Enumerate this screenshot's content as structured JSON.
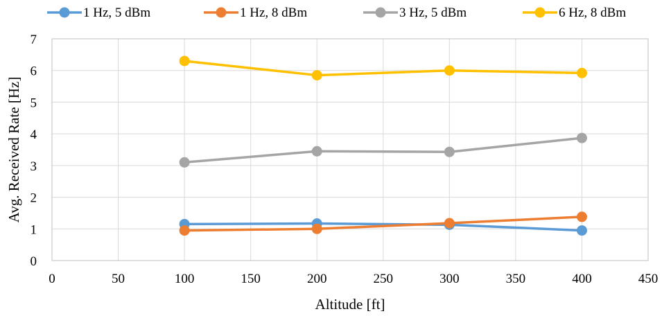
{
  "chart_data": {
    "type": "line",
    "title": "",
    "xlabel": "Altitude [ft]",
    "ylabel": "Avg. Received Rate [Hz]",
    "xlim": [
      0,
      450
    ],
    "ylim": [
      0,
      7
    ],
    "xticks": [
      0,
      50,
      100,
      150,
      200,
      250,
      300,
      350,
      400,
      450
    ],
    "yticks": [
      0,
      1,
      2,
      3,
      4,
      5,
      6,
      7
    ],
    "grid": true,
    "legend_position": "top",
    "x": [
      100,
      200,
      300,
      400
    ],
    "series": [
      {
        "name": "1 Hz, 5 dBm",
        "color": "#5b9bd5",
        "values": [
          1.15,
          1.17,
          1.13,
          0.95
        ]
      },
      {
        "name": "1 Hz, 8 dBm",
        "color": "#ed7d31",
        "values": [
          0.95,
          1.0,
          1.18,
          1.38
        ]
      },
      {
        "name": "3 Hz, 5 dBm",
        "color": "#a5a5a5",
        "values": [
          3.1,
          3.45,
          3.43,
          3.87
        ]
      },
      {
        "name": "6 Hz, 8 dBm",
        "color": "#ffc000",
        "values": [
          6.3,
          5.85,
          6.0,
          5.92
        ]
      }
    ]
  }
}
